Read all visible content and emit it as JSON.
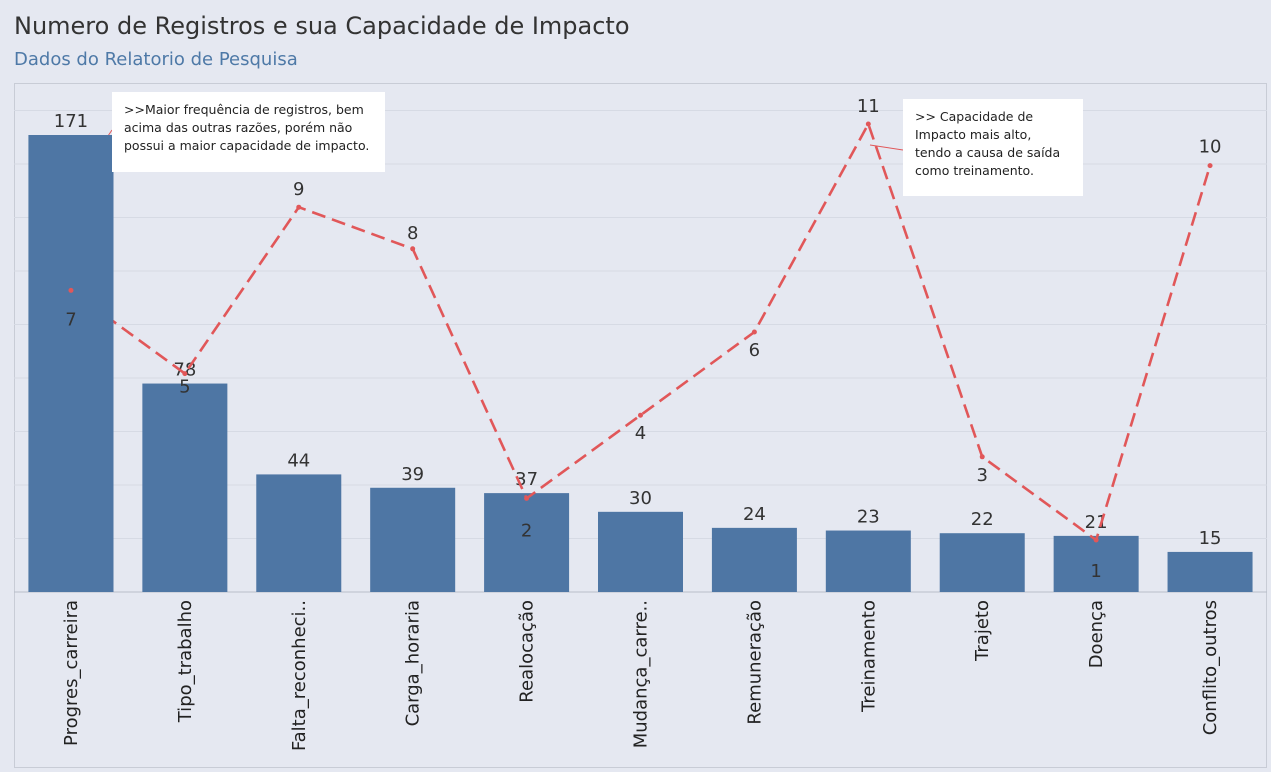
{
  "chart_data": {
    "type": "bar",
    "title": "Numero de Registros e sua Capacidade de Impacto",
    "subtitle": "Dados do Relatorio de Pesquisa",
    "categories": [
      "Progres_carreira",
      "Tipo_trabalho",
      "Falta_reconheci..",
      "Carga_horaria",
      "Realocação",
      "Mudança_carre..",
      "Remuneração",
      "Treinamento",
      "Trajeto",
      "Doença",
      "Conflito_outros"
    ],
    "series": [
      {
        "type": "bar",
        "values": [
          171,
          78,
          44,
          39,
          37,
          30,
          24,
          23,
          22,
          21,
          15
        ]
      },
      {
        "type": "line",
        "values": [
          7,
          5,
          9,
          8,
          2,
          4,
          6,
          11,
          3,
          1,
          10
        ]
      }
    ],
    "bar_ylim": [
      0,
      171
    ],
    "line_ylim": [
      1,
      11
    ],
    "grid": true,
    "annotations": [
      ">>Maior frequência de registros, bem acima das outras razões, porém não possui a maior capacidade de impacto.",
      ">> Capacidade de Impacto mais alto, tendo a causa de saída como treinamento."
    ]
  },
  "colors": {
    "bar": "#4e76a4",
    "line": "#e15759",
    "background": "#e5e8f1",
    "grid": "#d6dae4"
  }
}
